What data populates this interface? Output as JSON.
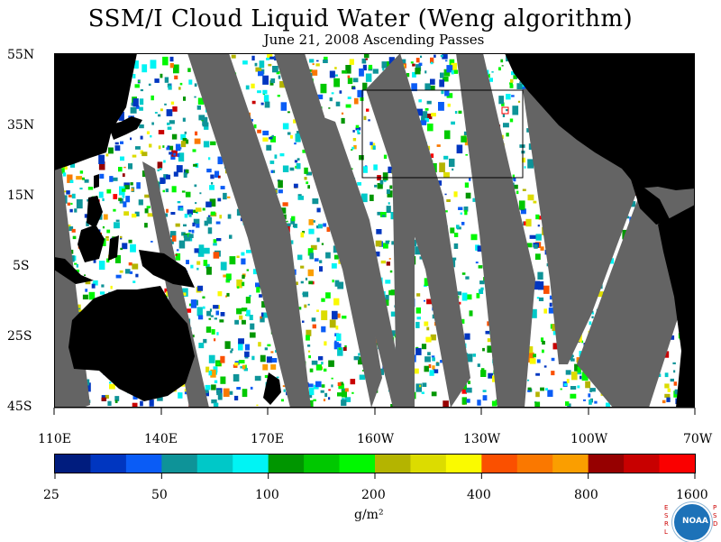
{
  "title": "SSM/I Cloud Liquid Water (Weng algorithm)",
  "subtitle": "June 21, 2008  Ascending Passes",
  "latitude_labels": [
    "55N",
    "35N",
    "15N",
    "5S",
    "25S",
    "45S"
  ],
  "longitude_labels": [
    "110E",
    "140E",
    "170E",
    "160W",
    "130W",
    "100W",
    "70W"
  ],
  "colorbar": {
    "tick_labels": [
      "25",
      "50",
      "100",
      "200",
      "400",
      "800",
      "1600"
    ],
    "unit": "g/m²",
    "colors": [
      "#001c7e",
      "#0036c0",
      "#0a5cf6",
      "#0e9398",
      "#00c8c8",
      "#00f4f4",
      "#009600",
      "#00c800",
      "#00f800",
      "#b4b400",
      "#dcdc00",
      "#fafa00",
      "#fa5000",
      "#fa7800",
      "#fa9e00",
      "#960000",
      "#c80000",
      "#fa0000"
    ]
  },
  "colors": {
    "ocean": "#ffffff",
    "land": "#000000",
    "no_data_gap": "#646464",
    "box": "#000000",
    "marker": "#ff0000"
  },
  "logo": {
    "text": "NOAA",
    "left_letters": "ESRL",
    "right_letters": "PSD"
  }
}
